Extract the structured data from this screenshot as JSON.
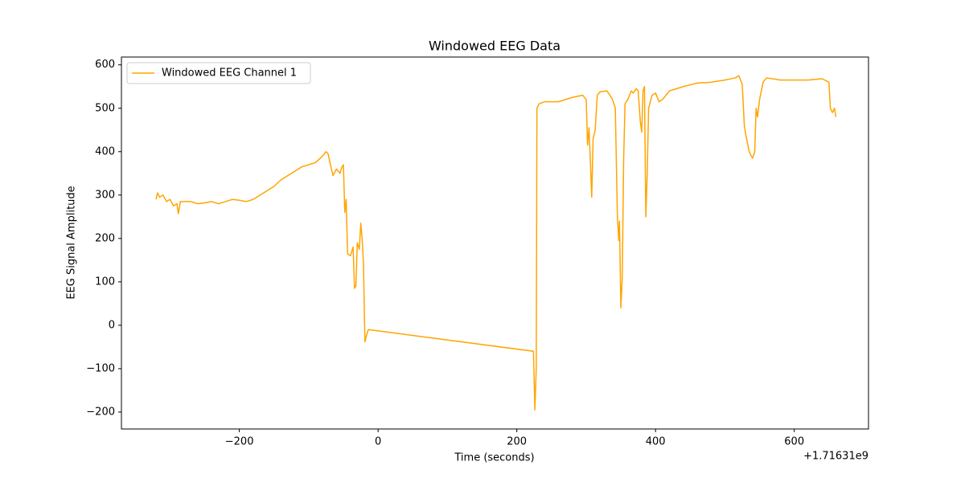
{
  "chart_data": {
    "type": "line",
    "title": "Windowed EEG Data",
    "x_label": "Time (seconds)",
    "y_label": "EEG Signal Amplitude",
    "x_offset_label": "+1.71631e9",
    "legend_position": "upper left",
    "grid": false,
    "xlim": [
      1716309630,
      1716310707
    ],
    "ylim": [
      -239,
      618
    ],
    "xticks": [
      {
        "value": 1716309800,
        "label": "−200"
      },
      {
        "value": 1716310000,
        "label": "0"
      },
      {
        "value": 1716310200,
        "label": "200"
      },
      {
        "value": 1716310400,
        "label": "400"
      },
      {
        "value": 1716310600,
        "label": "600"
      }
    ],
    "yticks": [
      {
        "value": -200,
        "label": "−200"
      },
      {
        "value": -100,
        "label": "−100"
      },
      0,
      100,
      200,
      300,
      400,
      500,
      600
    ],
    "x": [
      1716309680,
      1716309682,
      1716309685,
      1716309690,
      1716309695,
      1716309700,
      1716309705,
      1716309710,
      1716309712,
      1716309715,
      1716309720,
      1716309730,
      1716309740,
      1716309750,
      1716309760,
      1716309770,
      1716309780,
      1716309790,
      1716309800,
      1716309810,
      1716309820,
      1716309830,
      1716309840,
      1716309850,
      1716309860,
      1716309870,
      1716309880,
      1716309890,
      1716309900,
      1716309910,
      1716309920,
      1716309925,
      1716309928,
      1716309932,
      1716309935,
      1716309940,
      1716309945,
      1716309948,
      1716309950,
      1716309952,
      1716309954,
      1716309956,
      1716309960,
      1716309964,
      1716309966,
      1716309968,
      1716309970,
      1716309973,
      1716309975,
      1716309977,
      1716309979,
      1716309981,
      1716309983,
      1716309986,
      1716310224,
      1716310226,
      1716310228,
      1716310229,
      1716310232,
      1716310240,
      1716310260,
      1716310280,
      1716310295,
      1716310300,
      1716310302,
      1716310304,
      1716310306,
      1716310308,
      1716310310,
      1716310313,
      1716310316,
      1716310320,
      1716310330,
      1716310338,
      1716310342,
      1716310345,
      1716310347,
      1716310348,
      1716310350,
      1716310352,
      1716310354,
      1716310356,
      1716310360,
      1716310365,
      1716310368,
      1716310372,
      1716310375,
      1716310378,
      1716310380,
      1716310382,
      1716310384,
      1716310386,
      1716310388,
      1716310390,
      1716310395,
      1716310400,
      1716310405,
      1716310410,
      1716310420,
      1716310440,
      1716310460,
      1716310480,
      1716310500,
      1716310515,
      1716310520,
      1716310525,
      1716310528,
      1716310530,
      1716310535,
      1716310538,
      1716310540,
      1716310543,
      1716310545,
      1716310547,
      1716310550,
      1716310555,
      1716310560,
      1716310580,
      1716310600,
      1716310620,
      1716310640,
      1716310650,
      1716310652,
      1716310655,
      1716310658,
      1716310660
    ],
    "series": [
      {
        "name": "Windowed EEG Channel 1",
        "color": "#ffa500",
        "values": [
          290,
          305,
          295,
          300,
          285,
          290,
          275,
          280,
          257,
          285,
          285,
          285,
          280,
          282,
          285,
          280,
          285,
          290,
          288,
          285,
          290,
          300,
          310,
          320,
          335,
          345,
          355,
          365,
          370,
          375,
          390,
          400,
          395,
          365,
          345,
          360,
          350,
          365,
          370,
          260,
          290,
          165,
          160,
          180,
          85,
          90,
          190,
          175,
          235,
          200,
          140,
          -38,
          -25,
          -10,
          -60,
          -195,
          -100,
          500,
          510,
          515,
          515,
          525,
          530,
          520,
          415,
          455,
          380,
          295,
          430,
          450,
          530,
          538,
          540,
          520,
          500,
          250,
          195,
          240,
          40,
          110,
          380,
          510,
          520,
          540,
          535,
          545,
          540,
          470,
          445,
          540,
          550,
          250,
          350,
          500,
          530,
          535,
          515,
          520,
          540,
          550,
          558,
          560,
          565,
          570,
          575,
          555,
          460,
          440,
          400,
          390,
          385,
          400,
          500,
          480,
          520,
          560,
          570,
          565,
          565,
          565,
          568,
          560,
          500,
          490,
          500,
          480
        ]
      }
    ]
  }
}
